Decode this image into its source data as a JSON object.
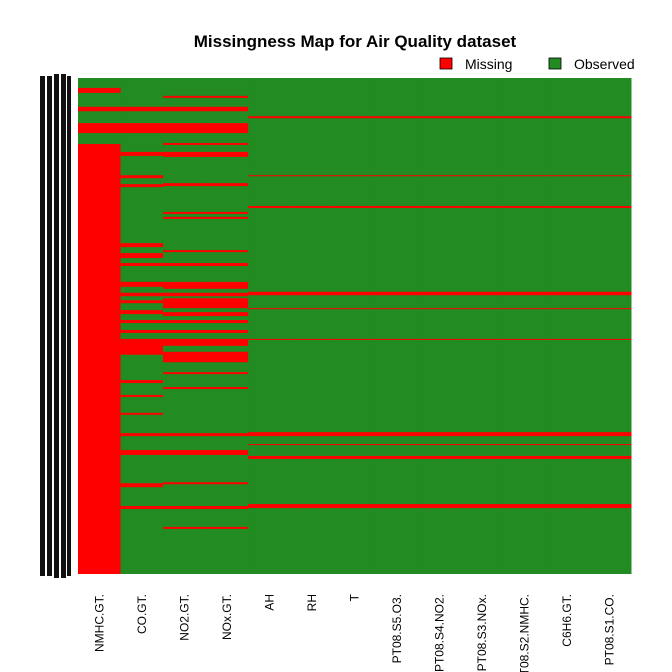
{
  "chart_data": {
    "type": "missmap",
    "title": "Missingness Map for Air Quality dataset",
    "legend": [
      {
        "name": "Missing",
        "color": "#ff0000"
      },
      {
        "name": "Observed",
        "color": "#228b22"
      }
    ],
    "legend_position": "top-right",
    "ylim": [
      0,
      100
    ],
    "categories": [
      "NMHC.GT.",
      "CO.GT.",
      "NO2.GT.",
      "NOx.GT.",
      "AH",
      "RH",
      "T",
      "PT08.S5.O3.",
      "PT08.S4.NO2.",
      "PT08.S3.NOx.",
      "PT08.S2.NMHC.",
      "C6H6.GT.",
      "PT08.S1.CO."
    ],
    "missing": [
      [
        [
          2.0,
          3.0
        ],
        [
          5.8,
          6.7
        ],
        [
          9.1,
          11.1
        ],
        [
          13.3,
          100
        ]
      ],
      [
        [
          5.8,
          6.7
        ],
        [
          9.1,
          11.1
        ],
        [
          14.9,
          15.7
        ],
        [
          19.6,
          20.2
        ],
        [
          21.4,
          22.0
        ],
        [
          33.3,
          34.1
        ],
        [
          35.3,
          36.3
        ],
        [
          37.3,
          37.9
        ],
        [
          41.1,
          42.1
        ],
        [
          43.3,
          44.0
        ],
        [
          44.8,
          45.4
        ],
        [
          46.8,
          47.6
        ],
        [
          48.8,
          49.4
        ],
        [
          50.8,
          51.4
        ],
        [
          52.6,
          55.8
        ],
        [
          60.9,
          61.5
        ],
        [
          63.9,
          64.3
        ],
        [
          67.5,
          67.9
        ],
        [
          71.6,
          72.2
        ],
        [
          75.0,
          76.0
        ],
        [
          81.7,
          82.5
        ],
        [
          86.3,
          86.9
        ]
      ],
      [
        [
          3.6,
          4.0
        ],
        [
          5.8,
          6.7
        ],
        [
          9.1,
          11.1
        ],
        [
          13.1,
          13.5
        ],
        [
          14.9,
          15.9
        ],
        [
          21.2,
          21.8
        ],
        [
          27.0,
          27.4
        ],
        [
          28.0,
          28.4
        ],
        [
          34.7,
          35.1
        ],
        [
          37.3,
          37.9
        ],
        [
          41.1,
          42.5
        ],
        [
          43.3,
          44.0
        ],
        [
          44.4,
          46.4
        ],
        [
          47.2,
          48.0
        ],
        [
          48.8,
          49.4
        ],
        [
          50.8,
          51.4
        ],
        [
          52.6,
          54.0
        ],
        [
          55.2,
          57.3
        ],
        [
          59.3,
          59.7
        ],
        [
          62.3,
          62.7
        ],
        [
          71.6,
          72.2
        ],
        [
          75.0,
          76.0
        ],
        [
          81.5,
          81.9
        ],
        [
          86.3,
          86.9
        ],
        [
          90.5,
          90.9
        ]
      ],
      [
        [
          3.6,
          4.0
        ],
        [
          5.8,
          6.7
        ],
        [
          9.1,
          11.1
        ],
        [
          13.1,
          13.5
        ],
        [
          14.9,
          15.9
        ],
        [
          21.2,
          21.8
        ],
        [
          27.0,
          27.4
        ],
        [
          28.0,
          28.4
        ],
        [
          34.7,
          35.1
        ],
        [
          37.3,
          37.9
        ],
        [
          41.1,
          42.5
        ],
        [
          43.3,
          44.0
        ],
        [
          44.4,
          46.4
        ],
        [
          47.2,
          48.0
        ],
        [
          48.8,
          49.4
        ],
        [
          50.8,
          51.4
        ],
        [
          52.6,
          54.0
        ],
        [
          55.2,
          57.3
        ],
        [
          59.3,
          59.7
        ],
        [
          62.3,
          62.7
        ],
        [
          71.6,
          72.2
        ],
        [
          75.0,
          76.0
        ],
        [
          81.5,
          81.9
        ],
        [
          86.3,
          86.9
        ],
        [
          90.5,
          90.9
        ]
      ],
      [
        [
          7.7,
          8.1
        ],
        [
          19.6,
          19.8
        ],
        [
          25.8,
          26.2
        ],
        [
          43.1,
          43.8
        ],
        [
          46.4,
          46.6
        ],
        [
          52.6,
          52.8
        ],
        [
          71.4,
          72.2
        ],
        [
          73.8,
          74.0
        ],
        [
          76.2,
          76.8
        ],
        [
          85.9,
          86.7
        ]
      ],
      [
        [
          7.7,
          8.1
        ],
        [
          19.6,
          19.8
        ],
        [
          25.8,
          26.2
        ],
        [
          43.1,
          43.8
        ],
        [
          46.4,
          46.6
        ],
        [
          52.6,
          52.8
        ],
        [
          71.4,
          72.2
        ],
        [
          73.8,
          74.0
        ],
        [
          76.2,
          76.8
        ],
        [
          85.9,
          86.7
        ]
      ],
      [
        [
          7.7,
          8.1
        ],
        [
          19.6,
          19.8
        ],
        [
          25.8,
          26.2
        ],
        [
          43.1,
          43.8
        ],
        [
          46.4,
          46.6
        ],
        [
          52.6,
          52.8
        ],
        [
          71.4,
          72.2
        ],
        [
          73.8,
          74.0
        ],
        [
          76.2,
          76.8
        ],
        [
          85.9,
          86.7
        ]
      ],
      [
        [
          7.7,
          8.1
        ],
        [
          19.6,
          19.8
        ],
        [
          25.8,
          26.2
        ],
        [
          43.1,
          43.8
        ],
        [
          46.4,
          46.6
        ],
        [
          52.6,
          52.8
        ],
        [
          71.4,
          72.2
        ],
        [
          73.8,
          74.0
        ],
        [
          76.2,
          76.8
        ],
        [
          85.9,
          86.7
        ]
      ],
      [
        [
          7.7,
          8.1
        ],
        [
          19.6,
          19.8
        ],
        [
          25.8,
          26.2
        ],
        [
          43.1,
          43.8
        ],
        [
          46.4,
          46.6
        ],
        [
          52.6,
          52.8
        ],
        [
          71.4,
          72.2
        ],
        [
          73.8,
          74.0
        ],
        [
          76.2,
          76.8
        ],
        [
          85.9,
          86.7
        ]
      ],
      [
        [
          7.7,
          8.1
        ],
        [
          19.6,
          19.8
        ],
        [
          25.8,
          26.2
        ],
        [
          43.1,
          43.8
        ],
        [
          46.4,
          46.6
        ],
        [
          52.6,
          52.8
        ],
        [
          71.4,
          72.2
        ],
        [
          73.8,
          74.0
        ],
        [
          76.2,
          76.8
        ],
        [
          85.9,
          86.7
        ]
      ],
      [
        [
          7.7,
          8.1
        ],
        [
          19.6,
          19.8
        ],
        [
          25.8,
          26.2
        ],
        [
          43.1,
          43.8
        ],
        [
          46.4,
          46.6
        ],
        [
          52.6,
          52.8
        ],
        [
          71.4,
          72.2
        ],
        [
          73.8,
          74.0
        ],
        [
          76.2,
          76.8
        ],
        [
          85.9,
          86.7
        ]
      ],
      [
        [
          7.7,
          8.1
        ],
        [
          19.6,
          19.8
        ],
        [
          25.8,
          26.2
        ],
        [
          43.1,
          43.8
        ],
        [
          46.4,
          46.6
        ],
        [
          52.6,
          52.8
        ],
        [
          71.4,
          72.2
        ],
        [
          73.8,
          74.0
        ],
        [
          76.2,
          76.8
        ],
        [
          85.9,
          86.7
        ]
      ],
      [
        [
          7.7,
          8.1
        ],
        [
          19.6,
          19.8
        ],
        [
          25.8,
          26.2
        ],
        [
          43.1,
          43.8
        ],
        [
          46.4,
          46.6
        ],
        [
          52.6,
          52.8
        ],
        [
          71.4,
          72.2
        ],
        [
          73.8,
          74.0
        ],
        [
          76.2,
          76.8
        ],
        [
          85.9,
          86.7
        ]
      ]
    ]
  }
}
